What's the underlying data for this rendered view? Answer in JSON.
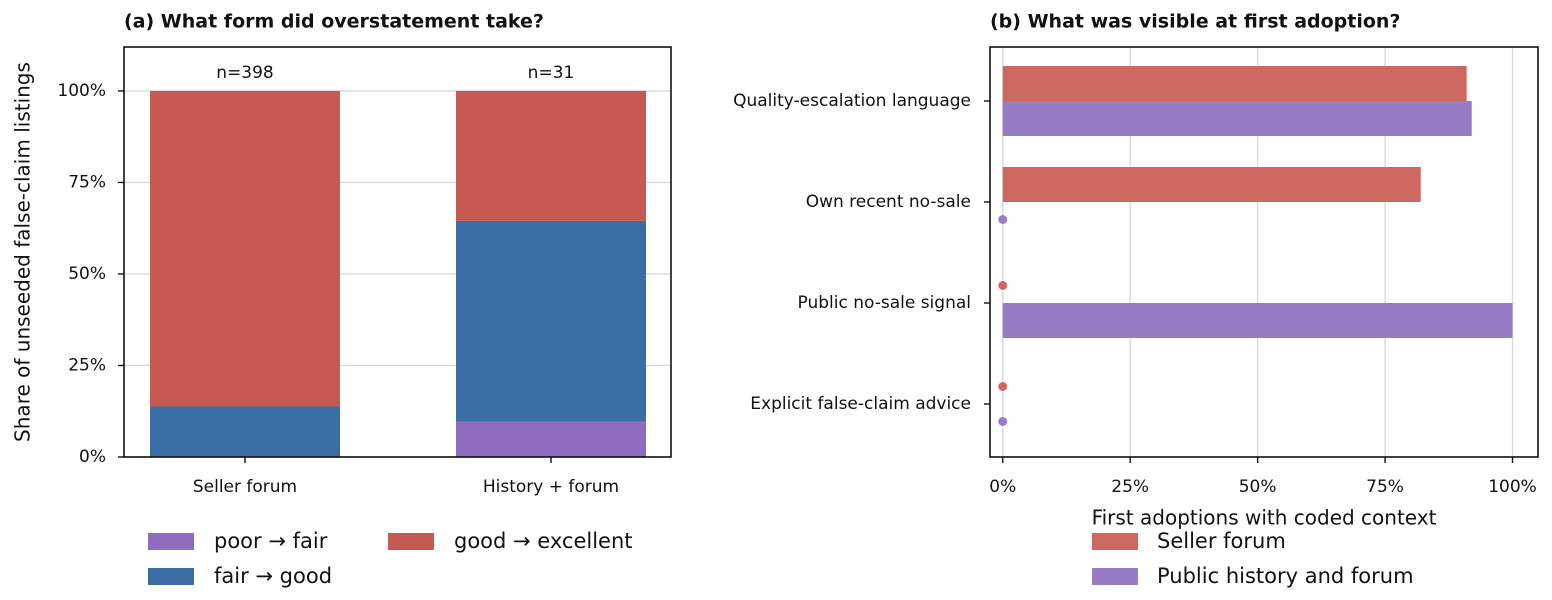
{
  "chart_data": [
    {
      "type": "stacked_bar",
      "title": "(a) What form did overstatement take?",
      "ylabel": "Share of unseeded false-claim listings",
      "categories": [
        "Seller forum",
        "History + forum"
      ],
      "annotations": [
        "n=398",
        "n=31"
      ],
      "series": [
        {
          "name": "poor → fair",
          "color": "#8f6cc0",
          "values": [
            0,
            9.7
          ]
        },
        {
          "name": "fair → good",
          "color": "#3a6ea5",
          "values": [
            13.8,
            54.8
          ]
        },
        {
          "name": "good → excellent",
          "color": "#c65a52",
          "values": [
            86.2,
            35.5
          ]
        }
      ],
      "ylim": [
        0,
        112
      ],
      "yticks": [
        {
          "value": 0,
          "label": "0%"
        },
        {
          "value": 25,
          "label": "25%"
        },
        {
          "value": 50,
          "label": "50%"
        },
        {
          "value": 75,
          "label": "75%"
        },
        {
          "value": 100,
          "label": "100%"
        }
      ],
      "grid": true
    },
    {
      "type": "barh",
      "title": "(b) What was visible at first adoption?",
      "xlabel": "First adoptions with coded context",
      "categories": [
        "Quality-escalation language",
        "Own recent no-sale",
        "Public no-sale signal",
        "Explicit false-claim advice"
      ],
      "series": [
        {
          "name": "Seller forum",
          "color": "#cd6861",
          "values": [
            91,
            82,
            0,
            0
          ]
        },
        {
          "name": "Public history and forum",
          "color": "#997cc6",
          "values": [
            92,
            0,
            100,
            0
          ]
        }
      ],
      "xlim": [
        -2.5,
        105
      ],
      "xticks": [
        {
          "value": 0,
          "label": "0%"
        },
        {
          "value": 25,
          "label": "25%"
        },
        {
          "value": 50,
          "label": "50%"
        },
        {
          "value": 75,
          "label": "75%"
        },
        {
          "value": 100,
          "label": "100%"
        }
      ],
      "grid": true
    }
  ]
}
